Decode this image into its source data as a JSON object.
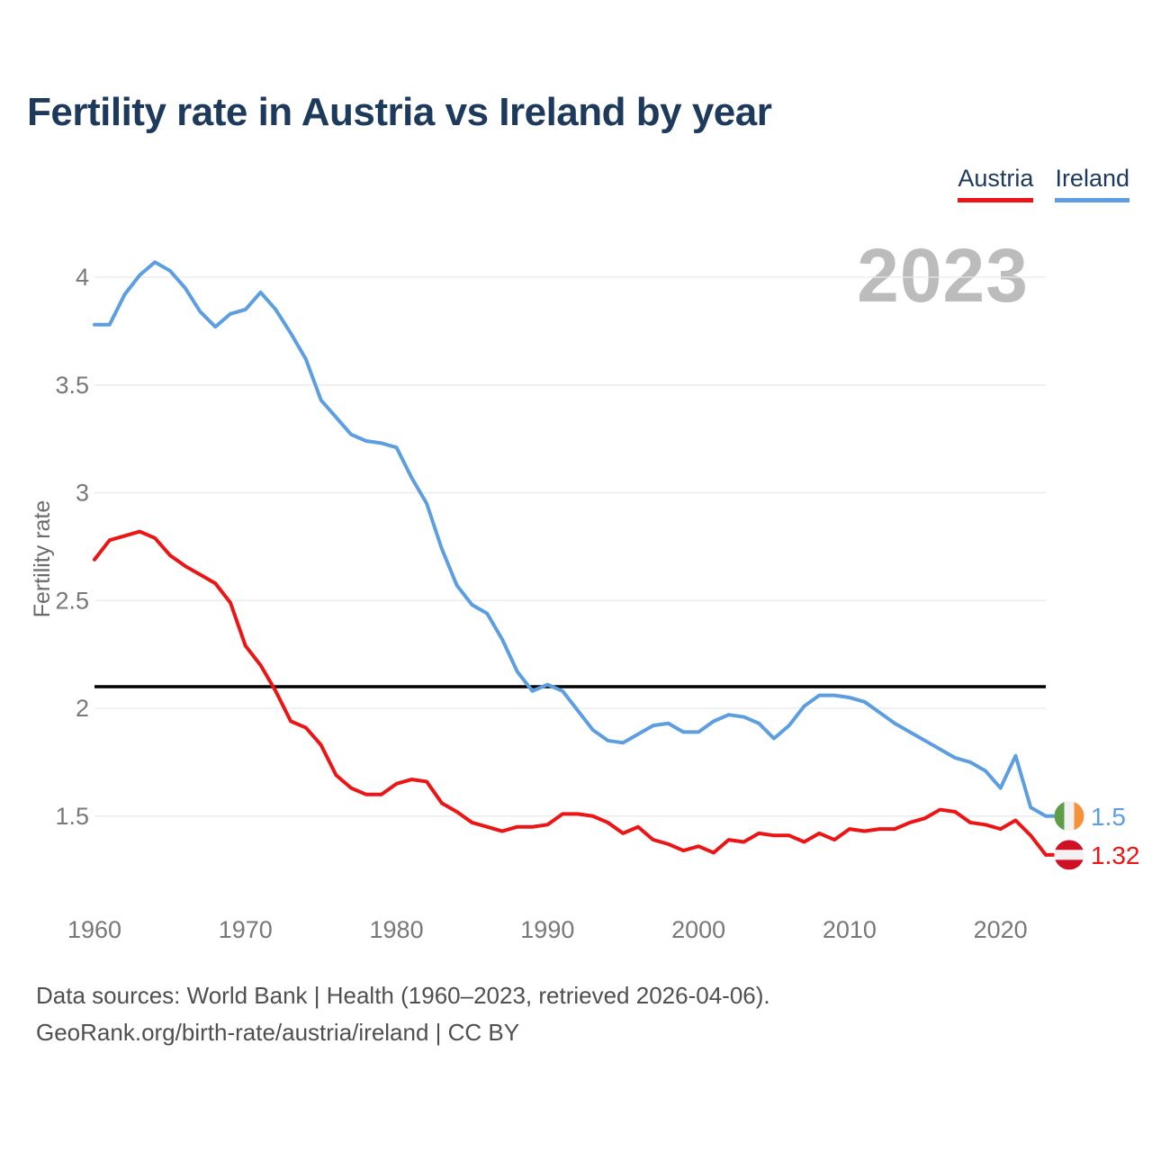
{
  "title": "Fertility rate in Austria vs Ireland by year",
  "watermark": "2023",
  "legend": [
    {
      "label": "Austria",
      "color": "#ec1414"
    },
    {
      "label": "Ireland",
      "color": "#5c9ee0"
    }
  ],
  "y_axis": {
    "label": "Fertility rate",
    "ticks": [
      1.5,
      2,
      2.5,
      3,
      3.5,
      4
    ]
  },
  "x_axis": {
    "ticks": [
      1960,
      1970,
      1980,
      1990,
      2000,
      2010,
      2020
    ]
  },
  "reference_line": {
    "value": 2.1,
    "color": "#000000"
  },
  "footer": {
    "line1": "Data sources: World Bank | Health (1960–2023, retrieved 2026-04-06).",
    "line2": "GeoRank.org/birth-rate/austria/ireland | CC BY"
  },
  "colors": {
    "title_navy": "#1d3a5c",
    "gridline": "#e9e9e9",
    "tick_text": "#787878",
    "watermark_gray": "#bcbcbc",
    "footer_gray": "#4f4f4f"
  },
  "flag_colors": {
    "austria": {
      "red": "#ce1126",
      "white": "#f2f2f2"
    },
    "ireland": {
      "green": "#5f9e49",
      "white": "#f2f2f2",
      "orange": "#f59138"
    }
  },
  "chart_data": {
    "type": "line",
    "title": "Fertility rate in Austria vs Ireland by year",
    "xlabel": "",
    "ylabel": "Fertility rate",
    "ylim": [
      1.1,
      4.25
    ],
    "xlim": [
      1960,
      2023
    ],
    "grid": true,
    "legend_position": "top-right",
    "reference_line": 2.1,
    "x": [
      1960,
      1961,
      1962,
      1963,
      1964,
      1965,
      1966,
      1967,
      1968,
      1969,
      1970,
      1971,
      1972,
      1973,
      1974,
      1975,
      1976,
      1977,
      1978,
      1979,
      1980,
      1981,
      1982,
      1983,
      1984,
      1985,
      1986,
      1987,
      1988,
      1989,
      1990,
      1991,
      1992,
      1993,
      1994,
      1995,
      1996,
      1997,
      1998,
      1999,
      2000,
      2001,
      2002,
      2003,
      2004,
      2005,
      2006,
      2007,
      2008,
      2009,
      2010,
      2011,
      2012,
      2013,
      2014,
      2015,
      2016,
      2017,
      2018,
      2019,
      2020,
      2021,
      2022,
      2023
    ],
    "series": [
      {
        "name": "Ireland",
        "color": "#5c9ee0",
        "flag": "ireland",
        "end_label": "1.5",
        "values": [
          3.78,
          3.78,
          3.92,
          4.01,
          4.07,
          4.03,
          3.95,
          3.84,
          3.77,
          3.83,
          3.85,
          3.93,
          3.85,
          3.74,
          3.62,
          3.43,
          3.35,
          3.27,
          3.24,
          3.23,
          3.21,
          3.07,
          2.95,
          2.74,
          2.57,
          2.48,
          2.44,
          2.32,
          2.17,
          2.08,
          2.11,
          2.08,
          1.99,
          1.9,
          1.85,
          1.84,
          1.88,
          1.92,
          1.93,
          1.89,
          1.89,
          1.94,
          1.97,
          1.96,
          1.93,
          1.86,
          1.92,
          2.01,
          2.06,
          2.06,
          2.05,
          2.03,
          1.98,
          1.93,
          1.89,
          1.85,
          1.81,
          1.77,
          1.75,
          1.71,
          1.63,
          1.78,
          1.54,
          1.5
        ]
      },
      {
        "name": "Austria",
        "color": "#ec1414",
        "flag": "austria",
        "end_label": "1.32",
        "values": [
          2.69,
          2.78,
          2.8,
          2.82,
          2.79,
          2.71,
          2.66,
          2.62,
          2.58,
          2.49,
          2.29,
          2.2,
          2.08,
          1.94,
          1.91,
          1.83,
          1.69,
          1.63,
          1.6,
          1.6,
          1.65,
          1.67,
          1.66,
          1.56,
          1.52,
          1.47,
          1.45,
          1.43,
          1.45,
          1.45,
          1.46,
          1.51,
          1.51,
          1.5,
          1.47,
          1.42,
          1.45,
          1.39,
          1.37,
          1.34,
          1.36,
          1.33,
          1.39,
          1.38,
          1.42,
          1.41,
          1.41,
          1.38,
          1.42,
          1.39,
          1.44,
          1.43,
          1.44,
          1.44,
          1.47,
          1.49,
          1.53,
          1.52,
          1.47,
          1.46,
          1.44,
          1.48,
          1.41,
          1.32
        ]
      }
    ]
  }
}
